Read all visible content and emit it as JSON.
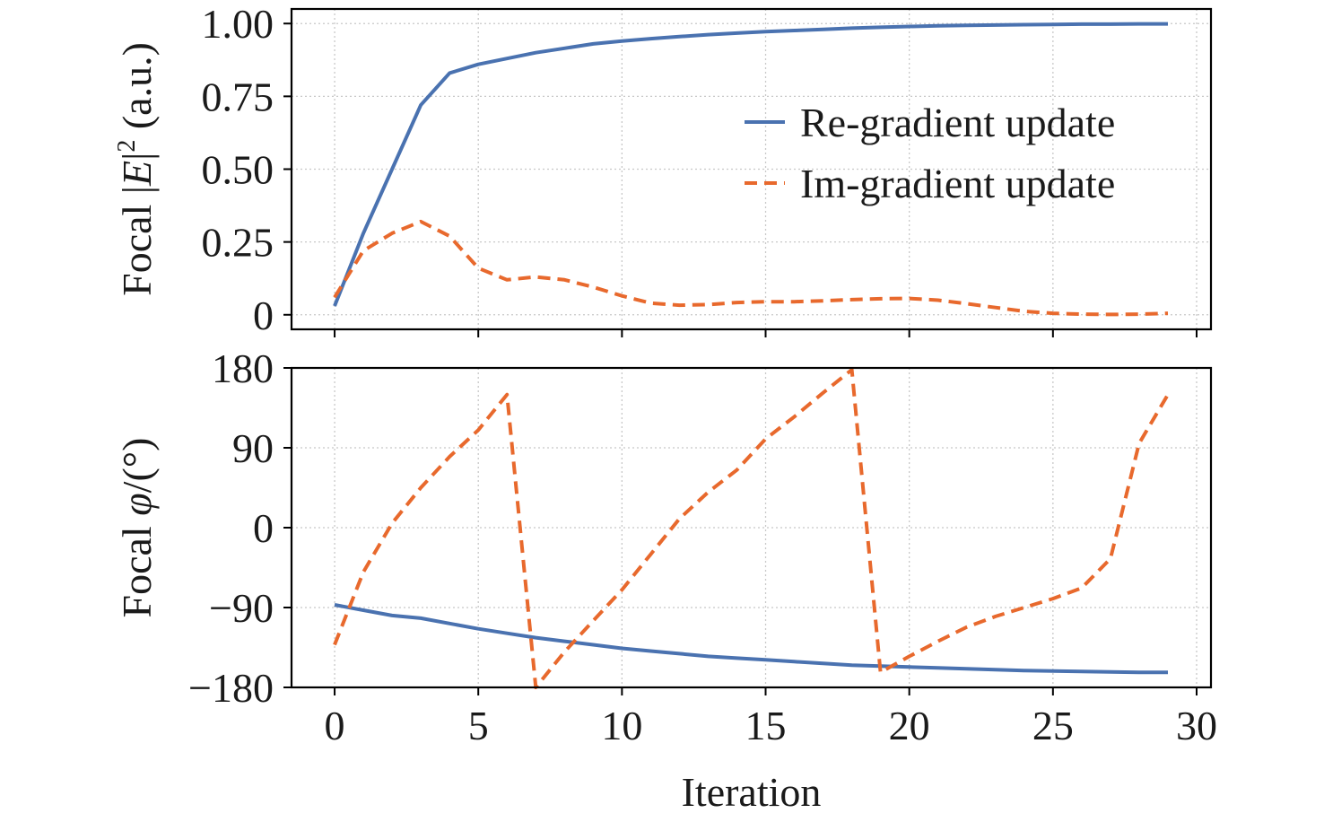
{
  "colors": {
    "re": "#4a72b0",
    "im": "#e8692d",
    "axis": "#000000",
    "grid": "#c8c8c8"
  },
  "chart_data": [
    {
      "type": "line",
      "panel": "top",
      "ylabel": "Focal |E|² (a.u.)",
      "ylabel_parts": {
        "prefix": "Focal |",
        "var": "E",
        "suffix": "|",
        "sup": "2",
        "unit": " (a.u.)"
      },
      "xlim": [
        -1.5,
        30.5
      ],
      "ylim": [
        -0.05,
        1.05
      ],
      "yticks": [
        0,
        0.25,
        0.5,
        0.75,
        1.0
      ],
      "ytick_labels": [
        "0",
        "0.25",
        "0.50",
        "0.75",
        "1.00"
      ],
      "xticks": [
        0,
        5,
        10,
        15,
        20,
        25,
        30
      ],
      "grid": true,
      "legend": {
        "placement": "upper-right",
        "entries": [
          "Re-gradient update",
          "Im-gradient update"
        ]
      },
      "x": [
        0,
        1,
        2,
        3,
        4,
        5,
        6,
        7,
        8,
        9,
        10,
        11,
        12,
        13,
        14,
        15,
        16,
        17,
        18,
        19,
        20,
        21,
        22,
        23,
        24,
        25,
        26,
        27,
        28,
        29
      ],
      "series": [
        {
          "name": "Re-gradient update",
          "style": "solid",
          "values": [
            0.03,
            0.28,
            0.5,
            0.72,
            0.83,
            0.86,
            0.88,
            0.9,
            0.915,
            0.93,
            0.94,
            0.948,
            0.955,
            0.962,
            0.967,
            0.972,
            0.976,
            0.98,
            0.984,
            0.987,
            0.99,
            0.992,
            0.994,
            0.995,
            0.996,
            0.997,
            0.998,
            0.998,
            0.999,
            0.999
          ]
        },
        {
          "name": "Im-gradient update",
          "style": "dashed",
          "values": [
            0.06,
            0.22,
            0.28,
            0.32,
            0.27,
            0.16,
            0.12,
            0.13,
            0.12,
            0.095,
            0.065,
            0.04,
            0.033,
            0.035,
            0.042,
            0.045,
            0.045,
            0.048,
            0.052,
            0.055,
            0.056,
            0.05,
            0.038,
            0.025,
            0.012,
            0.005,
            0.002,
            0.001,
            0.002,
            0.005
          ]
        }
      ]
    },
    {
      "type": "line",
      "panel": "bottom",
      "ylabel": "Focal φ/(°)",
      "ylabel_parts": {
        "prefix": "Focal ",
        "var": "φ",
        "unit": "/(°)"
      },
      "xlabel": "Iteration",
      "xlim": [
        -1.5,
        30.5
      ],
      "ylim": [
        -180,
        180
      ],
      "yticks": [
        -180,
        -90,
        0,
        90,
        180
      ],
      "ytick_labels": [
        "−180",
        "−90",
        "0",
        "90",
        "180"
      ],
      "xticks": [
        0,
        5,
        10,
        15,
        20,
        25,
        30
      ],
      "xtick_labels": [
        "0",
        "5",
        "10",
        "15",
        "20",
        "25",
        "30"
      ],
      "grid": true,
      "x": [
        0,
        1,
        2,
        3,
        4,
        5,
        6,
        7,
        8,
        9,
        10,
        11,
        12,
        13,
        14,
        15,
        16,
        17,
        18,
        19,
        20,
        21,
        22,
        23,
        24,
        25,
        26,
        27,
        28,
        29
      ],
      "series": [
        {
          "name": "Re-gradient update",
          "style": "solid",
          "values": [
            -87,
            -93,
            -99,
            -102,
            -108,
            -114,
            -119,
            -124,
            -128,
            -132,
            -136,
            -139,
            -142,
            -145,
            -147,
            -149,
            -151,
            -153,
            -155,
            -156,
            -157,
            -158,
            -159,
            -160,
            -161,
            -161.5,
            -162,
            -162.5,
            -163,
            -163
          ]
        },
        {
          "name": "Im-gradient update",
          "style": "dashed",
          "x": [
            0,
            1,
            2,
            3,
            4,
            5,
            6,
            7,
            8,
            9,
            10,
            11,
            12,
            13,
            14,
            15,
            16,
            17,
            18,
            19,
            20,
            21,
            22,
            23,
            24,
            25,
            26,
            27,
            28,
            29
          ],
          "values": [
            -132,
            -50,
            5,
            45,
            80,
            110,
            150,
            -180,
            -140,
            -105,
            -70,
            -30,
            10,
            40,
            65,
            100,
            125,
            152,
            178,
            -163,
            -145,
            -128,
            -112,
            -100,
            -90,
            -80,
            -68,
            -35,
            95,
            150
          ]
        }
      ]
    }
  ]
}
